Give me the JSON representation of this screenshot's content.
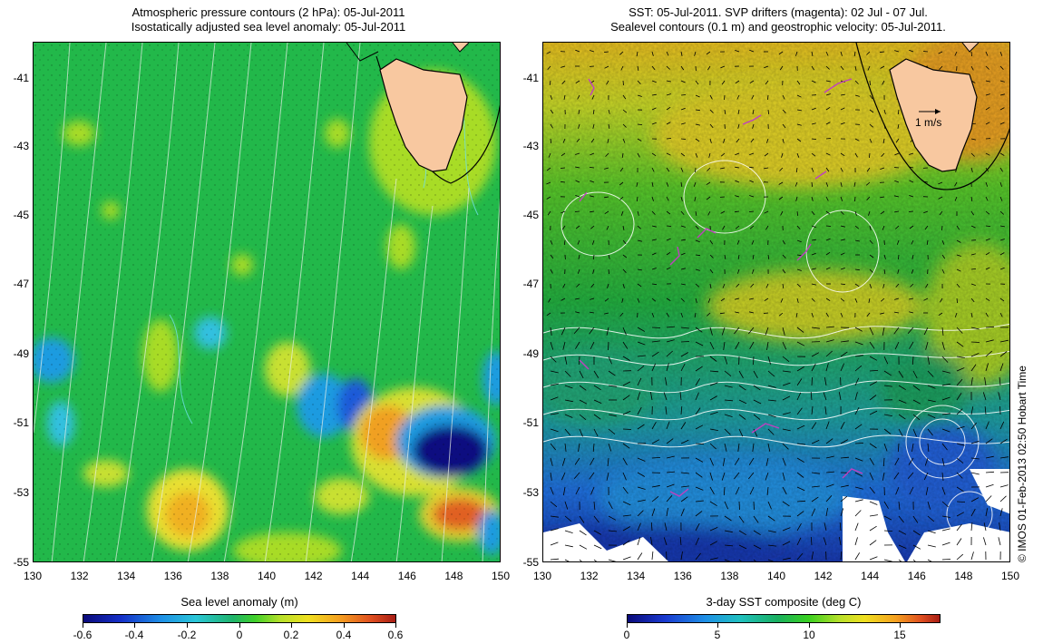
{
  "left_panel": {
    "title_line1": "Atmospheric pressure contours (2 hPa): 05-Jul-2011",
    "title_line2": "Isostatically adjusted sea level anomaly: 05-Jul-2011",
    "colorbar_label": "Sea level anomaly (m)",
    "colorbar_ticks": [
      "-0.6",
      "-0.4",
      "-0.2",
      "0",
      "0.2",
      "0.4",
      "0.6"
    ]
  },
  "right_panel": {
    "title_line1": "SST: 05-Jul-2011. SVP drifters (magenta): 02 Jul - 07 Jul.",
    "title_line2": "Sealevel contours (0.1 m) and geostrophic velocity: 05-Jul-2011.",
    "colorbar_label": "3-day SST composite (deg C)",
    "colorbar_ticks": [
      "0",
      "5",
      "10",
      "15"
    ],
    "scale_arrow_label": "1 m/s"
  },
  "axes": {
    "lat_ticks": [
      "-41",
      "-43",
      "-45",
      "-47",
      "-49",
      "-51",
      "-53",
      "-55"
    ],
    "lon_ticks": [
      "130",
      "132",
      "134",
      "136",
      "138",
      "140",
      "142",
      "144",
      "146",
      "148",
      "150"
    ],
    "lat_range": [
      -55,
      -40.2
    ],
    "lon_range": [
      130,
      150
    ]
  },
  "credit": "© IMOS 01-Feb-2013 02:50 Hobart Time",
  "colors": {
    "land": "#f8c8a0",
    "ssh_contour": "#e8f0e8",
    "pressure_contour": "#70e0e8",
    "drifter": "#c040c0"
  }
}
